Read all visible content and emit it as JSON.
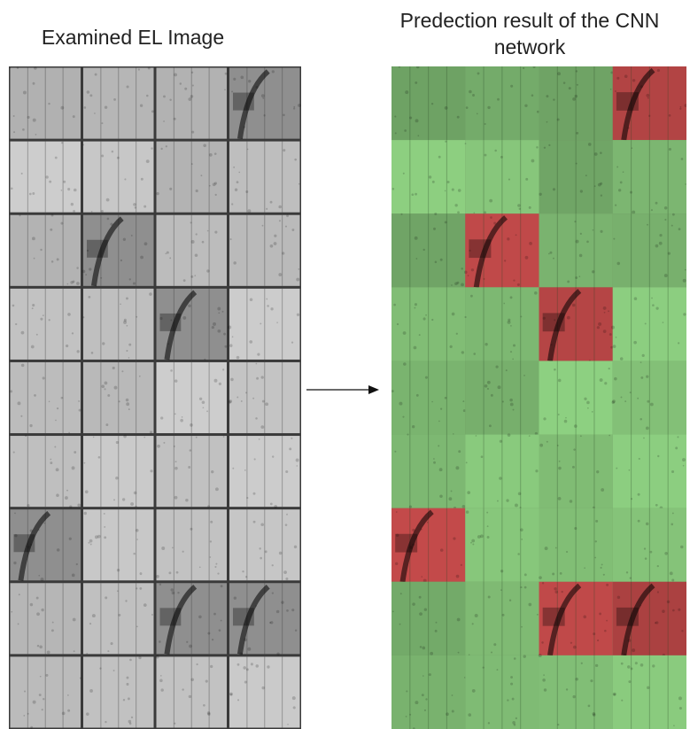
{
  "figure": {
    "left_title": "Examined EL Image",
    "right_title": "Predection result of the CNN network",
    "arrow_icon": "arrow-right-icon"
  },
  "grid": {
    "rows": 9,
    "cols": 4,
    "defect_cells": [
      [
        0,
        3
      ],
      [
        2,
        1
      ],
      [
        3,
        2
      ],
      [
        6,
        0
      ],
      [
        7,
        2
      ],
      [
        7,
        3
      ]
    ]
  },
  "colors": {
    "ok_cell": "#86c57a",
    "defect_cell": "#c24a4a",
    "el_cell_light": "#c9c9c9",
    "el_cell_dark": "#8f8f8f",
    "text": "#222222"
  }
}
